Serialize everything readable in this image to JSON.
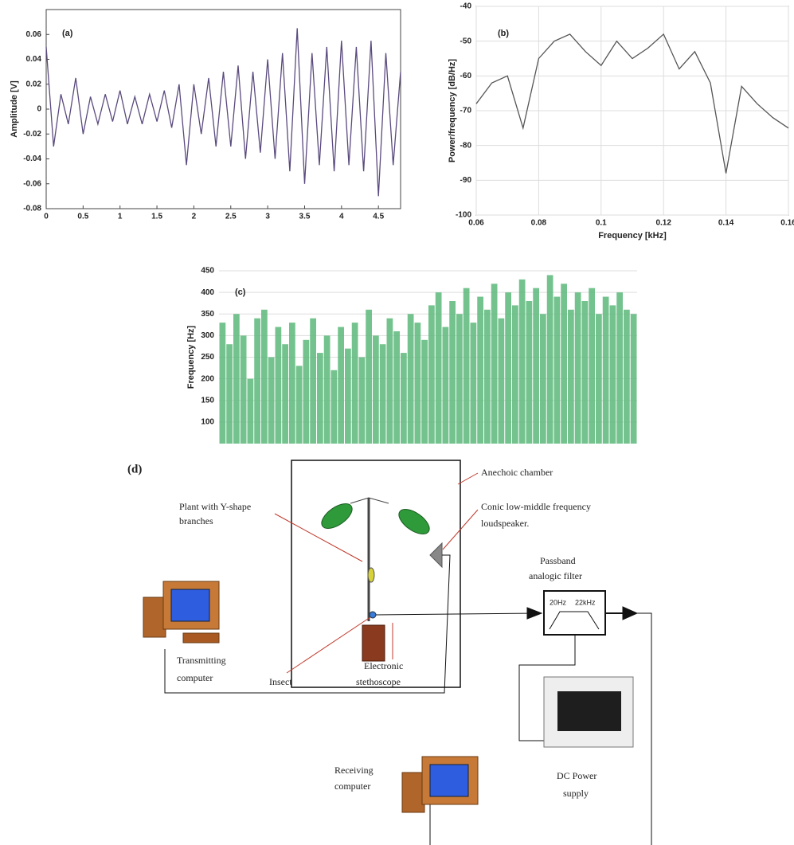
{
  "chart_data": [
    {
      "type": "line",
      "annotation": "(a)",
      "ylabel": "Amplitude [V]",
      "color": "#5a4a7e",
      "grid": false,
      "x": [
        0,
        0.1,
        0.2,
        0.3,
        0.4,
        0.5,
        0.6,
        0.7,
        0.8,
        0.9,
        1.0,
        1.1,
        1.2,
        1.3,
        1.4,
        1.5,
        1.6,
        1.7,
        1.8,
        1.9,
        2.0,
        2.1,
        2.2,
        2.3,
        2.4,
        2.5,
        2.6,
        2.7,
        2.8,
        2.9,
        3.0,
        3.1,
        3.2,
        3.3,
        3.4,
        3.5,
        3.6,
        3.7,
        3.8,
        3.9,
        4.0,
        4.1,
        4.2,
        4.3,
        4.4,
        4.5,
        4.6,
        4.7,
        4.8
      ],
      "values": [
        0.05,
        -0.03,
        0.012,
        -0.012,
        0.025,
        -0.02,
        0.01,
        -0.012,
        0.012,
        -0.01,
        0.015,
        -0.012,
        0.01,
        -0.012,
        0.012,
        -0.01,
        0.015,
        -0.015,
        0.02,
        -0.045,
        0.02,
        -0.02,
        0.025,
        -0.03,
        0.03,
        -0.03,
        0.035,
        -0.04,
        0.03,
        -0.035,
        0.04,
        -0.04,
        0.045,
        -0.05,
        0.065,
        -0.06,
        0.045,
        -0.045,
        0.05,
        -0.05,
        0.055,
        -0.045,
        0.05,
        -0.05,
        0.055,
        -0.07,
        0.045,
        -0.045,
        0.03
      ],
      "xlim": [
        0,
        4.8
      ],
      "ylim": [
        -0.08,
        0.08
      ],
      "xticks": [
        0,
        0.5,
        1,
        1.5,
        2,
        2.5,
        3,
        3.5,
        4,
        4.5
      ],
      "yticks": [
        -0.08,
        -0.06,
        -0.04,
        -0.02,
        0,
        0.02,
        0.04,
        0.06
      ]
    },
    {
      "type": "line",
      "annotation": "(b)",
      "xlabel": "Frequency [kHz]",
      "ylabel": "Power/frequency [dB/Hz]",
      "color": "#555555",
      "grid": true,
      "x": [
        0.06,
        0.065,
        0.07,
        0.075,
        0.08,
        0.085,
        0.09,
        0.095,
        0.1,
        0.105,
        0.11,
        0.115,
        0.12,
        0.125,
        0.13,
        0.135,
        0.14,
        0.145,
        0.15,
        0.155,
        0.16
      ],
      "values": [
        -68,
        -62,
        -60,
        -75,
        -55,
        -50,
        -48,
        -53,
        -57,
        -50,
        -55,
        -52,
        -48,
        -58,
        -53,
        -62,
        -88,
        -63,
        -68,
        -72,
        -75
      ],
      "xlim": [
        0.06,
        0.16
      ],
      "ylim": [
        -100,
        -40
      ],
      "xticks": [
        0.06,
        0.08,
        0.1,
        0.12,
        0.14,
        0.16
      ],
      "yticks": [
        -100,
        -90,
        -80,
        -70,
        -60,
        -50,
        -40
      ]
    },
    {
      "type": "bar",
      "annotation": "(c)",
      "ylabel": "Frequency [Hz]",
      "color": "#5cb87a",
      "grid": true,
      "values": [
        330,
        280,
        350,
        300,
        200,
        340,
        360,
        250,
        320,
        280,
        330,
        230,
        290,
        340,
        260,
        300,
        220,
        320,
        270,
        330,
        250,
        360,
        300,
        280,
        340,
        310,
        260,
        350,
        330,
        290,
        370,
        400,
        320,
        380,
        350,
        410,
        330,
        390,
        360,
        420,
        340,
        400,
        370,
        430,
        380,
        410,
        350,
        440,
        390,
        420,
        360,
        400,
        380,
        410,
        350,
        390,
        370,
        400,
        360,
        350
      ],
      "ylim": [
        50,
        450
      ],
      "yticks": [
        100,
        150,
        200,
        250,
        300,
        350,
        400,
        450
      ]
    }
  ],
  "diagram": {
    "label": "(d)",
    "chamber": "Anechoic chamber",
    "loudspeaker": [
      "Conic low-middle frequency",
      "loudspeaker."
    ],
    "plant": [
      "Plant with Y-shape",
      "branches"
    ],
    "filter": [
      "Passband",
      "analogic filter"
    ],
    "filter_low": "20Hz",
    "filter_high": "22kHz",
    "transmitter": [
      "Transmitting",
      "computer"
    ],
    "insect": "Insect",
    "stethoscope": [
      "Electronic",
      "stethoscope"
    ],
    "power": [
      "DC Power",
      "supply"
    ],
    "receiver": [
      "Receiving",
      "computer"
    ]
  }
}
